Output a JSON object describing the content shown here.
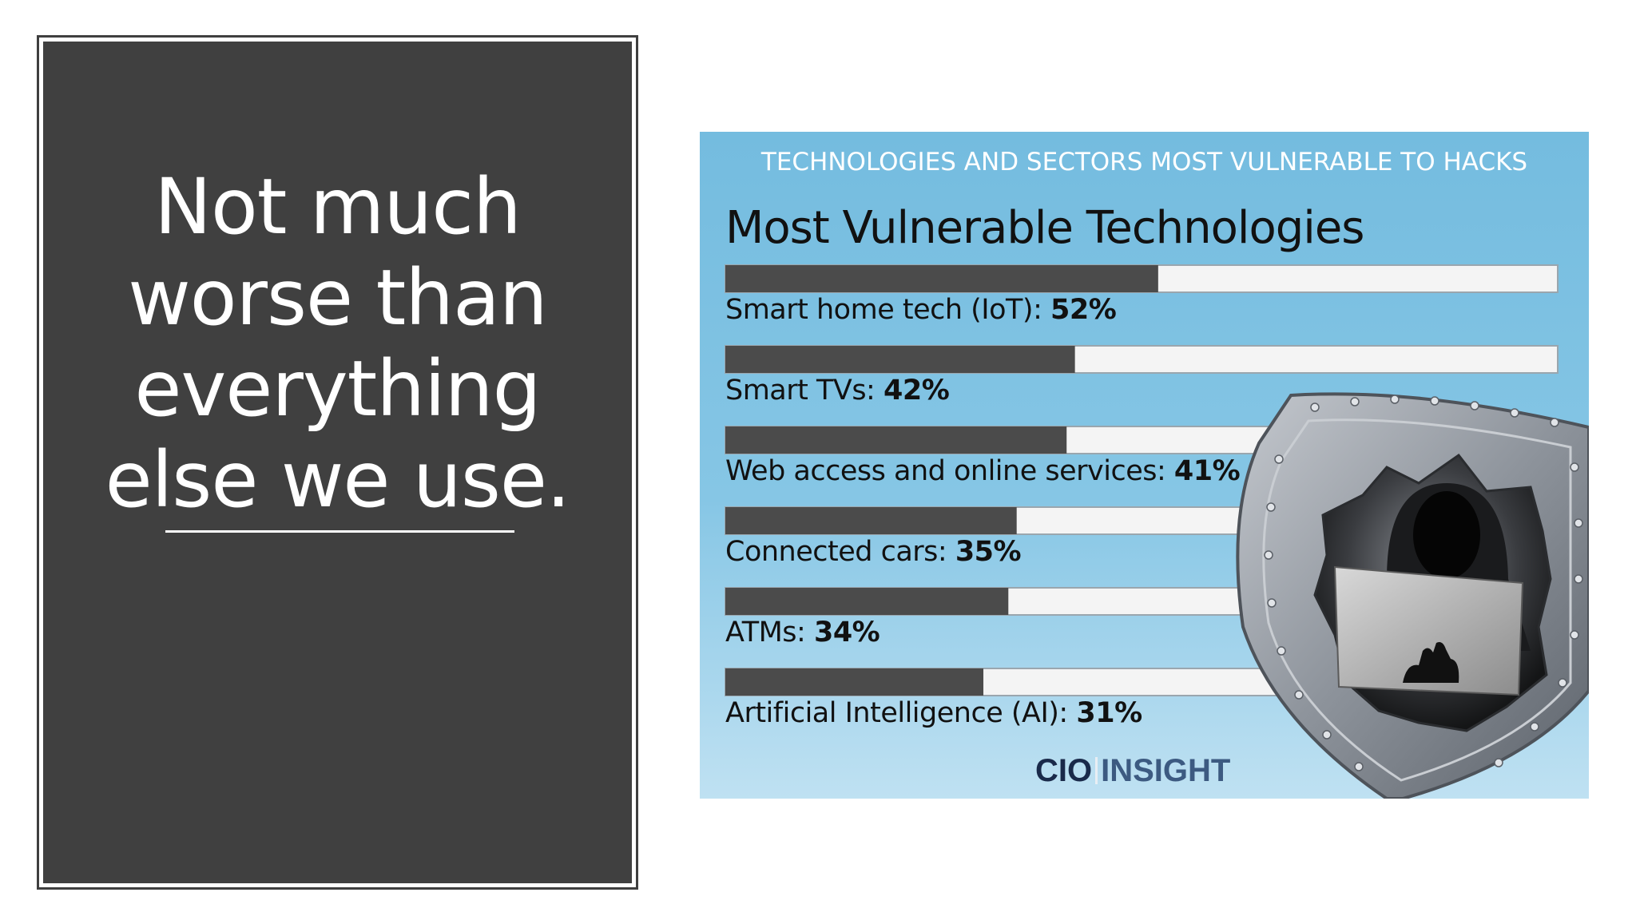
{
  "slide": {
    "title": "Not much worse than everything else we use."
  },
  "infographic": {
    "kicker": "TECHNOLOGIES AND SECTORS MOST VULNERABLE TO HACKS",
    "brand_part1": "CIO",
    "brand_part2": "INSIGHT",
    "colors": {
      "background": "#7fc2e3",
      "bar_fill": "#4b4b4b",
      "bar_track": "#f4f4f4",
      "shield": "#9aa0a8"
    },
    "illustration_icon": "hooded-hacker-shield-icon"
  },
  "chart_data": {
    "type": "bar",
    "orientation": "horizontal",
    "title": "Most Vulnerable Technologies",
    "categories": [
      "Smart home tech (IoT):",
      "Smart TVs:",
      "Web access and online services:",
      "Connected cars:",
      "ATMs:",
      "Artificial Intelligence (AI):"
    ],
    "values": [
      52,
      42,
      41,
      35,
      34,
      31
    ],
    "value_labels": [
      "52%",
      "42%",
      "41%",
      "35%",
      "34%",
      "31%"
    ],
    "xlim": [
      0,
      100
    ],
    "grid": false
  }
}
